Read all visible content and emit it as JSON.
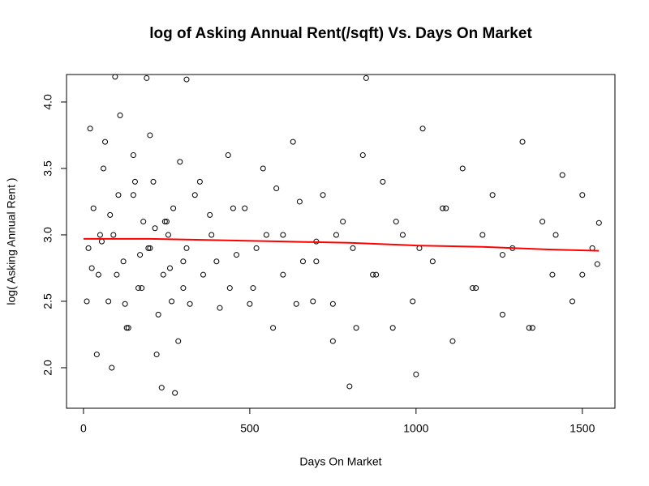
{
  "chart_data": {
    "type": "scatter",
    "title": "log of Asking Annual Rent(/sqft) Vs. Days On Market",
    "x_label": "Days On Market",
    "y_label": "log( Asking Annual Rent )",
    "xlim": [
      -51,
      1598
    ],
    "ylim": [
      1.695,
      4.207
    ],
    "xticks": [
      0,
      500,
      1000,
      1500
    ],
    "yticks": [
      {
        "value": 2,
        "label": "2.0"
      },
      2.5,
      {
        "value": 3,
        "label": "3.0"
      },
      3.5,
      {
        "value": 4,
        "label": "4.0"
      }
    ],
    "series": [
      {
        "type": "scatter",
        "color": "#000000",
        "x": [
          15,
          30,
          45,
          60,
          75,
          90,
          105,
          120,
          135,
          150,
          165,
          180,
          195,
          210,
          225,
          240,
          255,
          270,
          285,
          300,
          20,
          40,
          65,
          85,
          110,
          130,
          155,
          175,
          200,
          220,
          245,
          265,
          290,
          310,
          335,
          360,
          385,
          410,
          435,
          460,
          485,
          510,
          540,
          570,
          600,
          630,
          660,
          690,
          720,
          750,
          780,
          810,
          840,
          870,
          900,
          930,
          960,
          990,
          1020,
          1050,
          1080,
          1110,
          1140,
          1170,
          1200,
          1230,
          1260,
          1290,
          1320,
          1350,
          1380,
          1410,
          1440,
          1470,
          1500,
          1530,
          95,
          190,
          310,
          850,
          235,
          275,
          800,
          1000,
          1550,
          1545,
          10,
          50,
          100,
          150,
          200,
          250,
          300,
          350,
          400,
          450,
          500,
          550,
          600,
          650,
          700,
          750,
          25,
          55,
          80,
          125,
          170,
          215,
          260,
          320,
          380,
          440,
          520,
          580,
          640,
          700,
          760,
          820,
          880,
          940,
          1010,
          1090,
          1180,
          1260,
          1340,
          1420,
          1500
        ],
        "values": [
          2.9,
          3.2,
          2.7,
          3.5,
          2.5,
          3.0,
          3.3,
          2.8,
          2.3,
          3.6,
          2.6,
          3.1,
          2.9,
          3.4,
          2.4,
          2.7,
          3.0,
          3.2,
          2.2,
          2.8,
          3.8,
          2.1,
          3.7,
          2.0,
          3.9,
          2.3,
          3.4,
          2.6,
          3.75,
          2.1,
          3.1,
          2.5,
          3.55,
          2.9,
          3.3,
          2.7,
          3.0,
          2.45,
          3.6,
          2.85,
          3.2,
          2.6,
          3.5,
          2.3,
          3.0,
          3.7,
          2.8,
          2.5,
          3.3,
          2.2,
          3.1,
          2.9,
          3.6,
          2.7,
          3.4,
          2.3,
          3.0,
          2.5,
          3.8,
          2.8,
          3.2,
          2.2,
          3.5,
          2.6,
          3.0,
          3.3,
          2.4,
          2.9,
          3.7,
          2.3,
          3.1,
          2.7,
          3.45,
          2.5,
          3.3,
          2.9,
          4.19,
          4.18,
          4.17,
          4.18,
          1.85,
          1.81,
          1.86,
          1.95,
          3.09,
          2.78,
          2.5,
          3.0,
          2.7,
          3.3,
          2.9,
          3.1,
          2.6,
          3.4,
          2.8,
          3.2,
          2.48,
          3.0,
          2.7,
          3.25,
          2.95,
          2.48,
          2.75,
          2.95,
          3.15,
          2.48,
          2.85,
          3.05,
          2.75,
          2.48,
          3.15,
          2.6,
          2.9,
          3.35,
          2.48,
          2.8,
          3.0,
          2.3,
          2.7,
          3.1,
          2.9,
          3.2,
          2.6,
          2.85,
          2.3,
          3.0,
          2.7
        ]
      },
      {
        "type": "line",
        "color": "#ff0000",
        "x": [
          0,
          200,
          400,
          600,
          800,
          1000,
          1200,
          1400,
          1550
        ],
        "values": [
          2.97,
          2.97,
          2.96,
          2.95,
          2.94,
          2.92,
          2.91,
          2.89,
          2.88
        ]
      }
    ]
  }
}
